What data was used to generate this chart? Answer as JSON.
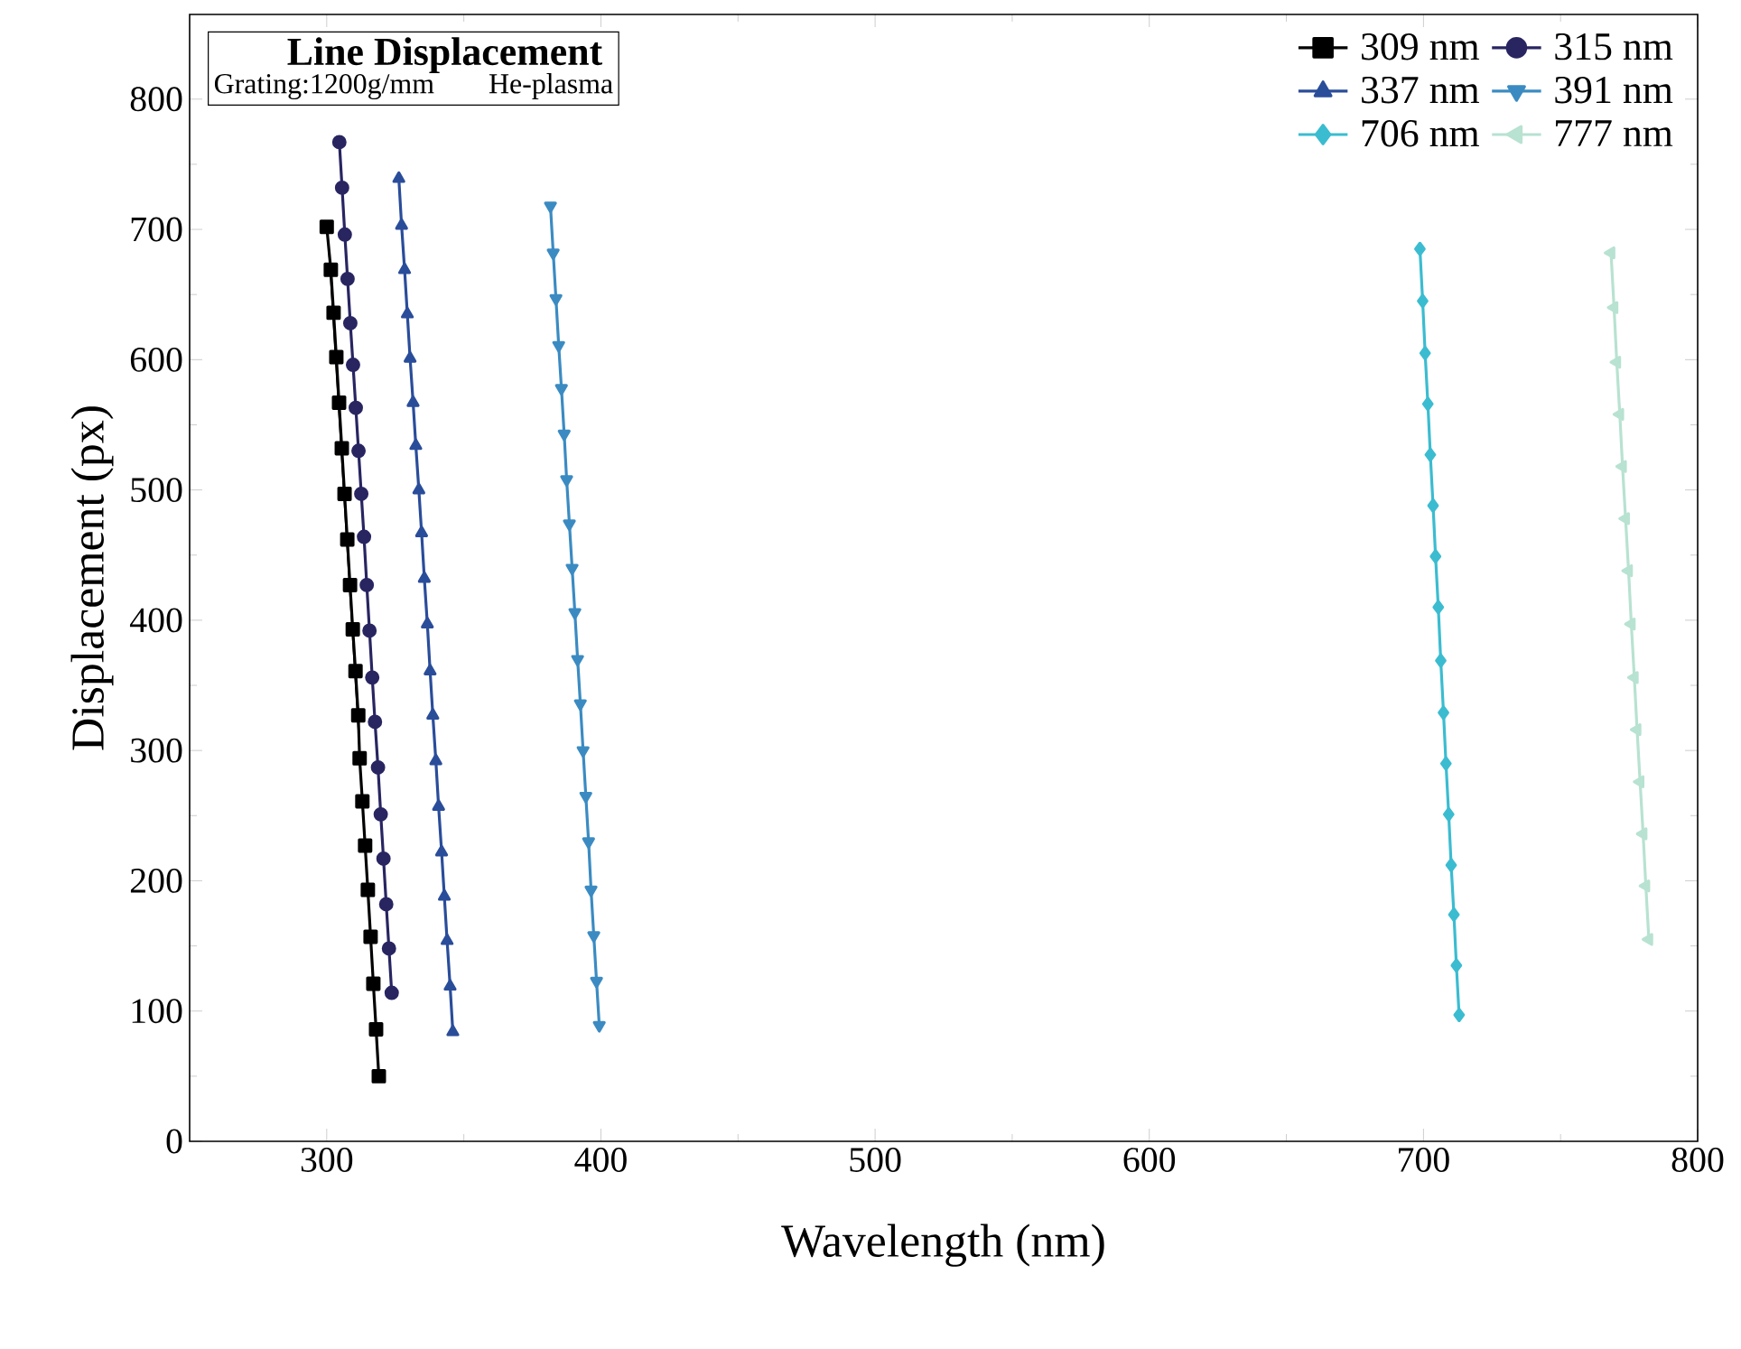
{
  "chart_data": {
    "type": "line",
    "title": "Line Displacement",
    "subtitle": "Grating:1200g/mm",
    "annotations": [
      "He-plasma"
    ],
    "xlabel": "Wavelength (nm)",
    "ylabel": "Displacement (px)",
    "xlim": [
      250,
      800
    ],
    "ylim": [
      0,
      865
    ],
    "xticks": [
      300,
      400,
      500,
      600,
      700,
      800
    ],
    "yticks": [
      0,
      100,
      200,
      300,
      400,
      500,
      600,
      700,
      800
    ],
    "grid": false,
    "legend": "top right",
    "line_style": "solid",
    "series": [
      {
        "name": "309 nm",
        "color": "#000000",
        "marker": "square",
        "x": [
          300.0,
          301.5,
          302.5,
          303.5,
          304.5,
          305.5,
          306.5,
          307.5,
          308.5,
          309.5,
          310.5,
          311.5,
          312.0,
          313.0,
          314.0,
          315.0,
          316.0,
          317.0,
          318.0,
          319.0
        ],
        "values": [
          702,
          669,
          636,
          602,
          567,
          532,
          497,
          462,
          427,
          393,
          361,
          327,
          294,
          261,
          227,
          193,
          157,
          121,
          86,
          50
        ]
      },
      {
        "name": "315 nm",
        "color": "#282561",
        "marker": "circle",
        "x": [
          304.6,
          305.6,
          306.6,
          307.6,
          308.6,
          309.6,
          310.6,
          311.6,
          312.6,
          313.6,
          314.6,
          315.6,
          316.6,
          317.6,
          318.7,
          319.7,
          320.7,
          321.7,
          322.7,
          323.7
        ],
        "values": [
          767,
          732,
          696,
          662,
          628,
          596,
          563,
          530,
          497,
          464,
          427,
          392,
          356,
          322,
          287,
          251,
          217,
          182,
          148,
          114
        ]
      },
      {
        "name": "337 nm",
        "color": "#2a4d9a",
        "marker": "triangle",
        "x": [
          326.3,
          327.3,
          328.4,
          329.4,
          330.4,
          331.5,
          332.5,
          333.6,
          334.6,
          335.6,
          336.7,
          337.7,
          338.7,
          339.8,
          340.8,
          341.9,
          342.9,
          343.9,
          345.0,
          346.0
        ],
        "values": [
          739,
          703,
          669,
          635,
          601,
          567,
          534,
          500,
          467,
          432,
          397,
          361,
          327,
          292,
          257,
          222,
          188,
          154,
          119,
          84
        ]
      },
      {
        "name": "391 nm",
        "color": "#3b8bc2",
        "marker": "triangle-down",
        "x": [
          381.6,
          382.6,
          383.6,
          384.6,
          385.6,
          386.6,
          387.5,
          388.5,
          389.5,
          390.5,
          391.5,
          392.5,
          393.5,
          394.5,
          395.5,
          396.4,
          397.4,
          398.4,
          399.4
        ],
        "values": [
          718,
          682,
          647,
          611,
          578,
          543,
          508,
          474,
          440,
          406,
          370,
          336,
          300,
          265,
          230,
          193,
          158,
          123,
          89
        ]
      },
      {
        "name": "706 nm",
        "color": "#3bbcd0",
        "marker": "diamond",
        "x": [
          698.7,
          699.7,
          700.6,
          701.6,
          702.5,
          703.5,
          704.4,
          705.4,
          706.3,
          707.3,
          708.2,
          709.2,
          710.1,
          711.1,
          712.0,
          713.0
        ],
        "values": [
          685,
          645,
          605,
          566,
          527,
          488,
          449,
          410,
          369,
          329,
          290,
          251,
          212,
          174,
          135,
          97
        ]
      },
      {
        "name": "777 nm",
        "color": "#b8e2d1",
        "marker": "triangle-left",
        "x": [
          768.4,
          769.5,
          770.5,
          771.6,
          772.6,
          773.7,
          774.8,
          775.8,
          776.9,
          777.9,
          779.0,
          780.1,
          781.1,
          782.2
        ],
        "values": [
          682,
          640,
          598,
          558,
          518,
          478,
          438,
          397,
          356,
          316,
          276,
          236,
          196,
          155
        ]
      }
    ]
  }
}
